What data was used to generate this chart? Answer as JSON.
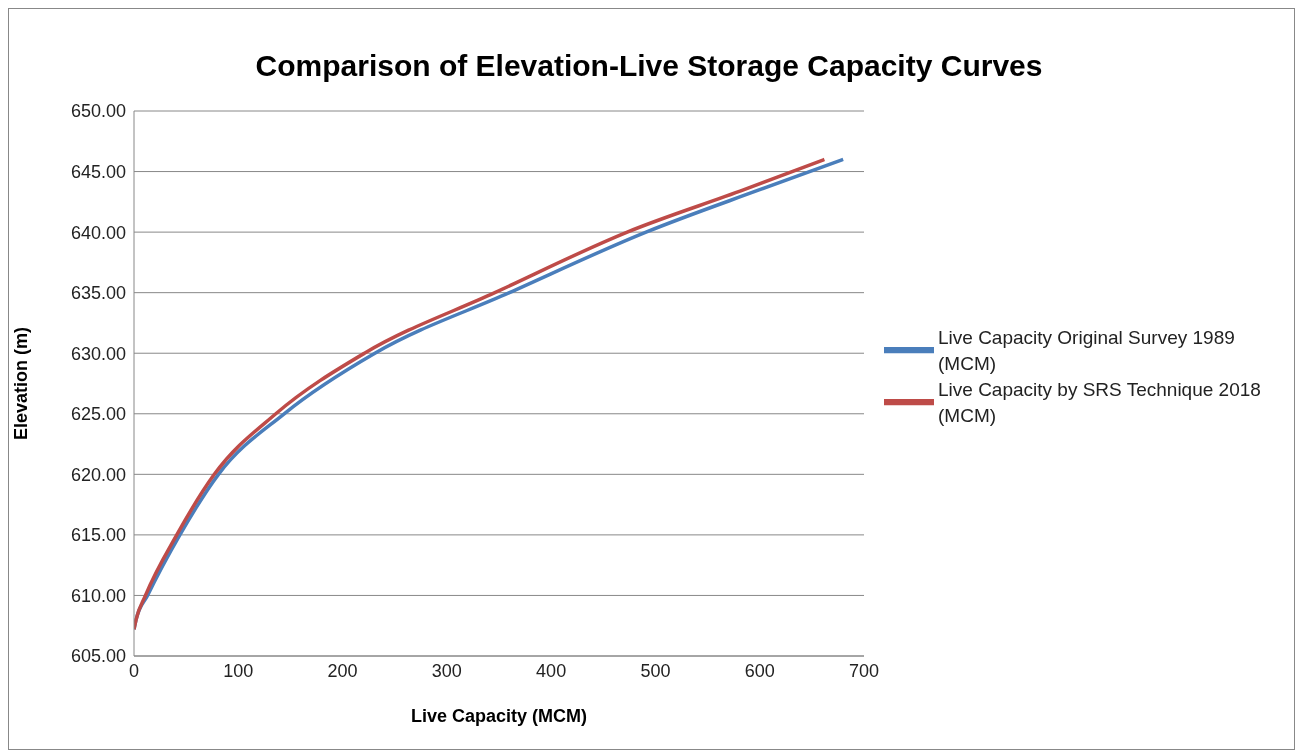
{
  "chart_data": {
    "type": "line",
    "title": "Comparison of Elevation-Live Storage Capacity Curves",
    "xlabel": "Live Capacity (MCM)",
    "ylabel": "Elevation (m)",
    "xlim": [
      0,
      700
    ],
    "xticks": [
      0,
      100,
      200,
      300,
      400,
      500,
      600,
      700
    ],
    "ylim": [
      605,
      650
    ],
    "yticks": [
      {
        "value": 605,
        "label": "605.00"
      },
      {
        "value": 610,
        "label": "610.00"
      },
      {
        "value": 615,
        "label": "615.00"
      },
      {
        "value": 620,
        "label": "620.00"
      },
      {
        "value": 625,
        "label": "625.00"
      },
      {
        "value": 630,
        "label": "630.00"
      },
      {
        "value": 635,
        "label": "635.00"
      },
      {
        "value": 640,
        "label": "640.00"
      },
      {
        "value": 645,
        "label": "645.00"
      },
      {
        "value": 650,
        "label": "650.00"
      }
    ],
    "grid": "y",
    "legend": "right",
    "marker": "none",
    "line_style": "solid",
    "series": [
      {
        "name": "Live Capacity Original Survey 1989 (MCM)",
        "color": "#4a7ebb",
        "x": [
          0,
          2,
          13,
          44,
          81,
          144,
          231,
          360,
          491,
          600,
          680
        ],
        "values": [
          607.2,
          608,
          610,
          615,
          620,
          625,
          630,
          635,
          640,
          643.5,
          646
        ]
      },
      {
        "name": "Live Capacity by SRS Technique 2018 (MCM)",
        "color": "#be4b48",
        "x": [
          0,
          2,
          11,
          41,
          77,
          136,
          221,
          346,
          473,
          585,
          662
        ],
        "values": [
          607.2,
          608,
          610,
          615,
          620,
          625,
          630,
          635,
          640,
          643.5,
          646
        ]
      }
    ]
  }
}
